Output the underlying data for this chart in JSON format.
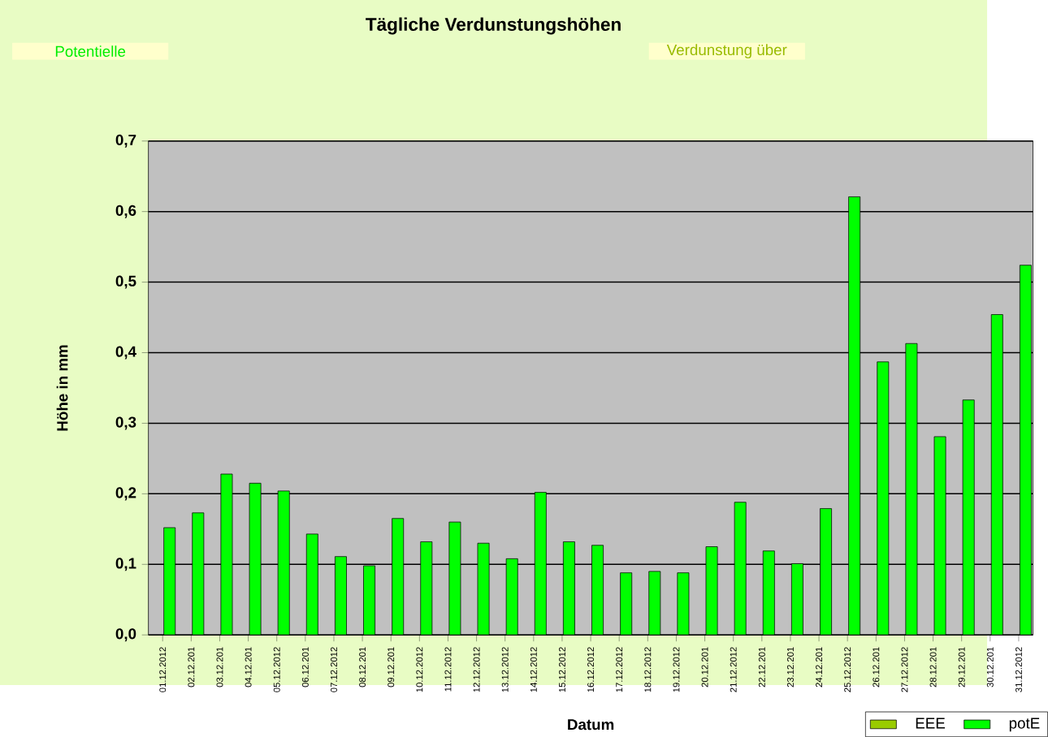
{
  "chart_data": {
    "type": "bar",
    "title": "Tägliche Verdunstungshöhen",
    "annotations": [
      "Potentielle",
      "Verdunstung über"
    ],
    "xlabel": "Datum",
    "ylabel": "Höhe in mm",
    "categories": [
      "01.12.2012",
      "02.12.201",
      "03.12.201",
      "04.12.201",
      "05.12.2012",
      "06.12.201",
      "07.12.2012",
      "08.12.201",
      "09.12.201",
      "10.12.2012",
      "11.12.2012",
      "12.12.2012",
      "13.12.2012",
      "14.12.2012",
      "15.12.2012",
      "16.12.2012",
      "17.12.2012",
      "18.12.2012",
      "19.12.2012",
      "20.12.201",
      "21.12.2012",
      "22.12.201",
      "23.12.201",
      "24.12.201",
      "25.12.2012",
      "26.12.201",
      "27.12.2012",
      "28.12.201",
      "29.12.201",
      "30.12.201",
      "31.12.2012"
    ],
    "series": [
      {
        "name": "EEE",
        "color": "#99cc00",
        "values": [
          null,
          null,
          null,
          null,
          null,
          null,
          null,
          null,
          null,
          null,
          null,
          null,
          null,
          null,
          null,
          null,
          null,
          null,
          null,
          null,
          null,
          null,
          null,
          null,
          null,
          null,
          null,
          null,
          null,
          null,
          null
        ]
      },
      {
        "name": "potE",
        "color": "#00ff00",
        "values": [
          0.152,
          0.173,
          0.228,
          0.215,
          0.204,
          0.143,
          0.111,
          0.098,
          0.165,
          0.132,
          0.16,
          0.13,
          0.108,
          0.202,
          0.132,
          0.127,
          0.088,
          0.09,
          0.088,
          0.125,
          0.188,
          0.119,
          0.101,
          0.179,
          0.621,
          0.387,
          0.413,
          0.281,
          0.333,
          0.454,
          0.524
        ]
      }
    ],
    "ylim": [
      0,
      0.7
    ],
    "yticks": [
      {
        "value": 0,
        "label": "0,0"
      },
      {
        "value": 0.1,
        "label": "0,1"
      },
      {
        "value": 0.2,
        "label": "0,2"
      },
      {
        "value": 0.3,
        "label": "0,3"
      },
      {
        "value": 0.4,
        "label": "0,4"
      },
      {
        "value": 0.5,
        "label": "0,5"
      },
      {
        "value": 0.6,
        "label": "0,6"
      },
      {
        "value": 0.7,
        "label": "0,7"
      }
    ],
    "grid": "y",
    "legend": "bottom right"
  }
}
